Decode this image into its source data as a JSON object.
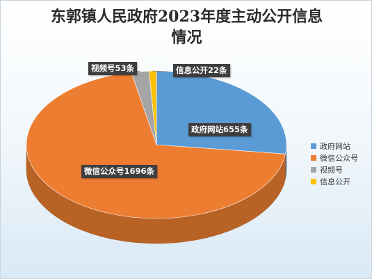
{
  "chart_data": {
    "type": "pie",
    "title_lines": [
      "东郭镇人民政府2023年度主动公开信息",
      "情况"
    ],
    "categories": [
      "政府网站",
      "微信公众号",
      "视频号",
      "信息公开"
    ],
    "values": [
      655,
      1696,
      53,
      22
    ],
    "unit": "条",
    "data_labels": [
      "政府网站655条",
      "微信公众号1696条",
      "视频号53条",
      "信息公开22条"
    ],
    "colors": [
      "#5b9bd5",
      "#ed7d31",
      "#a5a5a5",
      "#ffc000"
    ],
    "legend_position": "right",
    "style": "3d"
  }
}
